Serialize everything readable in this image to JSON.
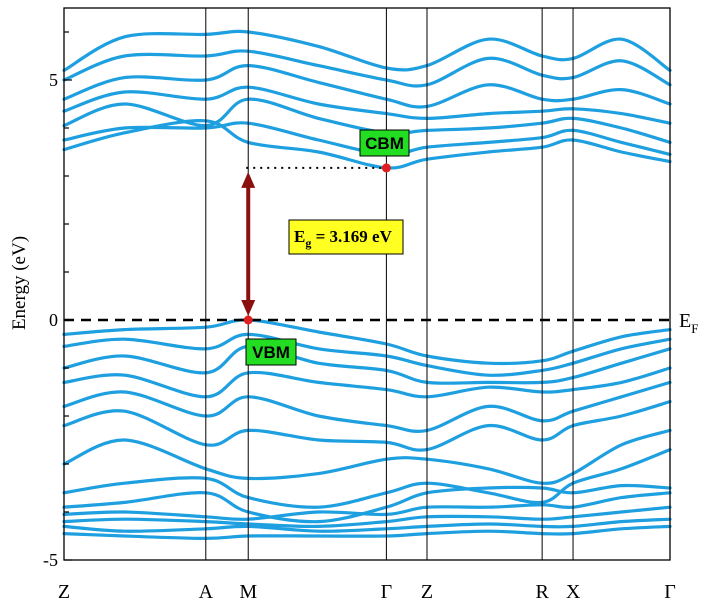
{
  "chart_data": {
    "type": "line",
    "title": "",
    "xlabel": "",
    "ylabel": "Energy (eV)",
    "ylim": [
      -5,
      6.5
    ],
    "yticks": [
      {
        "value": 5,
        "label": "5"
      },
      {
        "value": 0,
        "label": "0"
      },
      {
        "value": -5,
        "label": "-5"
      }
    ],
    "high_symmetry_points": [
      {
        "label": "Z",
        "k": 0.0
      },
      {
        "label": "A",
        "k": 0.234
      },
      {
        "label": "M",
        "k": 0.304
      },
      {
        "label": "Γ",
        "k": 0.532
      },
      {
        "label": "Z",
        "k": 0.599
      },
      {
        "label": "R",
        "k": 0.789
      },
      {
        "label": "X",
        "k": 0.84
      },
      {
        "label": "Γ",
        "k": 1.0
      }
    ],
    "fermi_level": {
      "label_main": "E",
      "label_sub": "F",
      "value": 0
    },
    "band_gap": {
      "label_main": "E",
      "label_sub": "g",
      "label_rest": " = 3.169 eV",
      "value": 3.169,
      "vbm": {
        "label": "VBM",
        "k": 0.304,
        "energy": 0.0
      },
      "cbm": {
        "label": "CBM",
        "k": 0.532,
        "energy": 3.169
      }
    },
    "series": [
      {
        "values": [
          [
            0,
            3.55
          ],
          [
            0.1,
            3.9
          ],
          [
            0.234,
            4.15
          ],
          [
            0.304,
            3.7
          ],
          [
            0.42,
            3.5
          ],
          [
            0.532,
            3.169
          ],
          [
            0.599,
            3.35
          ],
          [
            0.7,
            3.5
          ],
          [
            0.789,
            3.6
          ],
          [
            0.84,
            3.75
          ],
          [
            0.92,
            3.5
          ],
          [
            1,
            3.3
          ]
        ]
      },
      {
        "values": [
          [
            0,
            3.75
          ],
          [
            0.1,
            4.0
          ],
          [
            0.234,
            4.0
          ],
          [
            0.304,
            4.1
          ],
          [
            0.42,
            3.75
          ],
          [
            0.532,
            3.45
          ],
          [
            0.599,
            3.6
          ],
          [
            0.7,
            3.7
          ],
          [
            0.789,
            3.8
          ],
          [
            0.84,
            3.95
          ],
          [
            0.92,
            3.7
          ],
          [
            1,
            3.45
          ]
        ]
      },
      {
        "values": [
          [
            0,
            4.05
          ],
          [
            0.1,
            4.5
          ],
          [
            0.234,
            4.05
          ],
          [
            0.304,
            4.6
          ],
          [
            0.42,
            4.2
          ],
          [
            0.532,
            3.9
          ],
          [
            0.599,
            3.95
          ],
          [
            0.7,
            4.0
          ],
          [
            0.789,
            4.1
          ],
          [
            0.84,
            4.2
          ],
          [
            0.92,
            4.0
          ],
          [
            1,
            3.7
          ]
        ]
      },
      {
        "values": [
          [
            0,
            4.35
          ],
          [
            0.1,
            4.75
          ],
          [
            0.234,
            4.6
          ],
          [
            0.304,
            4.85
          ],
          [
            0.42,
            4.5
          ],
          [
            0.532,
            4.3
          ],
          [
            0.599,
            4.2
          ],
          [
            0.7,
            4.3
          ],
          [
            0.789,
            4.35
          ],
          [
            0.84,
            4.4
          ],
          [
            0.92,
            4.3
          ],
          [
            1,
            4.1
          ]
        ]
      },
      {
        "values": [
          [
            0,
            4.6
          ],
          [
            0.1,
            5.05
          ],
          [
            0.234,
            5.0
          ],
          [
            0.304,
            5.3
          ],
          [
            0.42,
            4.95
          ],
          [
            0.532,
            4.6
          ],
          [
            0.599,
            4.45
          ],
          [
            0.7,
            4.9
          ],
          [
            0.789,
            4.6
          ],
          [
            0.84,
            4.6
          ],
          [
            0.92,
            4.8
          ],
          [
            1,
            4.5
          ]
        ]
      },
      {
        "values": [
          [
            0,
            5.0
          ],
          [
            0.1,
            5.5
          ],
          [
            0.234,
            5.5
          ],
          [
            0.304,
            5.6
          ],
          [
            0.42,
            5.3
          ],
          [
            0.532,
            5.0
          ],
          [
            0.599,
            4.9
          ],
          [
            0.7,
            5.45
          ],
          [
            0.789,
            5.1
          ],
          [
            0.84,
            5.05
          ],
          [
            0.92,
            5.4
          ],
          [
            1,
            4.9
          ]
        ]
      },
      {
        "values": [
          [
            0,
            5.2
          ],
          [
            0.1,
            5.9
          ],
          [
            0.234,
            5.95
          ],
          [
            0.304,
            6.0
          ],
          [
            0.42,
            5.7
          ],
          [
            0.532,
            5.25
          ],
          [
            0.599,
            5.3
          ],
          [
            0.7,
            5.85
          ],
          [
            0.789,
            5.5
          ],
          [
            0.84,
            5.45
          ],
          [
            0.92,
            5.85
          ],
          [
            1,
            5.2
          ]
        ]
      },
      {
        "values": [
          [
            0,
            -0.3
          ],
          [
            0.1,
            -0.2
          ],
          [
            0.234,
            -0.15
          ],
          [
            0.304,
            0.0
          ],
          [
            0.42,
            -0.25
          ],
          [
            0.532,
            -0.5
          ],
          [
            0.599,
            -0.75
          ],
          [
            0.7,
            -0.9
          ],
          [
            0.789,
            -0.85
          ],
          [
            0.84,
            -0.65
          ],
          [
            0.92,
            -0.35
          ],
          [
            1,
            -0.2
          ]
        ]
      },
      {
        "values": [
          [
            0,
            -0.55
          ],
          [
            0.1,
            -0.4
          ],
          [
            0.234,
            -0.6
          ],
          [
            0.304,
            -0.3
          ],
          [
            0.42,
            -0.6
          ],
          [
            0.532,
            -0.75
          ],
          [
            0.599,
            -0.95
          ],
          [
            0.7,
            -1.15
          ],
          [
            0.789,
            -1.05
          ],
          [
            0.84,
            -0.9
          ],
          [
            0.92,
            -0.6
          ],
          [
            1,
            -0.4
          ]
        ]
      },
      {
        "values": [
          [
            0,
            -1.0
          ],
          [
            0.1,
            -0.75
          ],
          [
            0.234,
            -1.1
          ],
          [
            0.304,
            -0.55
          ],
          [
            0.42,
            -0.9
          ],
          [
            0.532,
            -1.05
          ],
          [
            0.599,
            -1.3
          ],
          [
            0.7,
            -1.3
          ],
          [
            0.789,
            -1.3
          ],
          [
            0.84,
            -1.2
          ],
          [
            0.92,
            -0.9
          ],
          [
            1,
            -0.6
          ]
        ]
      },
      {
        "values": [
          [
            0,
            -1.3
          ],
          [
            0.1,
            -1.15
          ],
          [
            0.234,
            -1.6
          ],
          [
            0.304,
            -1.1
          ],
          [
            0.42,
            -1.3
          ],
          [
            0.532,
            -1.45
          ],
          [
            0.599,
            -1.6
          ],
          [
            0.7,
            -1.4
          ],
          [
            0.789,
            -1.5
          ],
          [
            0.84,
            -1.45
          ],
          [
            0.92,
            -1.3
          ],
          [
            1,
            -1.0
          ]
        ]
      },
      {
        "values": [
          [
            0,
            -1.8
          ],
          [
            0.1,
            -1.5
          ],
          [
            0.234,
            -2.0
          ],
          [
            0.304,
            -1.6
          ],
          [
            0.42,
            -2.0
          ],
          [
            0.532,
            -2.2
          ],
          [
            0.599,
            -2.3
          ],
          [
            0.7,
            -1.8
          ],
          [
            0.789,
            -2.1
          ],
          [
            0.84,
            -1.9
          ],
          [
            0.92,
            -1.6
          ],
          [
            1,
            -1.3
          ]
        ]
      },
      {
        "values": [
          [
            0,
            -2.2
          ],
          [
            0.1,
            -1.9
          ],
          [
            0.234,
            -2.6
          ],
          [
            0.304,
            -2.3
          ],
          [
            0.42,
            -2.5
          ],
          [
            0.532,
            -2.55
          ],
          [
            0.599,
            -2.7
          ],
          [
            0.7,
            -2.2
          ],
          [
            0.789,
            -2.5
          ],
          [
            0.84,
            -2.2
          ],
          [
            0.92,
            -2.0
          ],
          [
            1,
            -1.7
          ]
        ]
      },
      {
        "values": [
          [
            0,
            -3.0
          ],
          [
            0.1,
            -2.5
          ],
          [
            0.234,
            -3.1
          ],
          [
            0.304,
            -3.3
          ],
          [
            0.42,
            -3.2
          ],
          [
            0.532,
            -2.9
          ],
          [
            0.599,
            -2.9
          ],
          [
            0.7,
            -3.1
          ],
          [
            0.789,
            -3.4
          ],
          [
            0.84,
            -3.2
          ],
          [
            0.92,
            -2.6
          ],
          [
            1,
            -2.3
          ]
        ]
      },
      {
        "values": [
          [
            0,
            -3.6
          ],
          [
            0.1,
            -3.4
          ],
          [
            0.234,
            -3.3
          ],
          [
            0.304,
            -3.7
          ],
          [
            0.42,
            -3.9
          ],
          [
            0.532,
            -3.6
          ],
          [
            0.599,
            -3.4
          ],
          [
            0.7,
            -3.6
          ],
          [
            0.789,
            -3.8
          ],
          [
            0.84,
            -3.4
          ],
          [
            0.92,
            -3.1
          ],
          [
            1,
            -2.7
          ]
        ]
      },
      {
        "values": [
          [
            0,
            -3.9
          ],
          [
            0.1,
            -3.8
          ],
          [
            0.234,
            -3.6
          ],
          [
            0.304,
            -4.0
          ],
          [
            0.42,
            -4.2
          ],
          [
            0.532,
            -3.9
          ],
          [
            0.599,
            -3.6
          ],
          [
            0.7,
            -3.5
          ],
          [
            0.789,
            -3.5
          ],
          [
            0.84,
            -3.6
          ],
          [
            0.92,
            -3.45
          ],
          [
            1,
            -3.5
          ]
        ]
      },
      {
        "values": [
          [
            0,
            -4.05
          ],
          [
            0.1,
            -4.0
          ],
          [
            0.234,
            -4.1
          ],
          [
            0.304,
            -4.15
          ],
          [
            0.42,
            -4.0
          ],
          [
            0.532,
            -4.05
          ],
          [
            0.599,
            -3.9
          ],
          [
            0.7,
            -3.9
          ],
          [
            0.789,
            -3.85
          ],
          [
            0.84,
            -3.9
          ],
          [
            0.92,
            -3.7
          ],
          [
            1,
            -3.6
          ]
        ]
      },
      {
        "values": [
          [
            0,
            -4.2
          ],
          [
            0.1,
            -4.15
          ],
          [
            0.234,
            -4.2
          ],
          [
            0.304,
            -4.25
          ],
          [
            0.42,
            -4.3
          ],
          [
            0.532,
            -4.2
          ],
          [
            0.599,
            -4.1
          ],
          [
            0.7,
            -4.1
          ],
          [
            0.789,
            -4.15
          ],
          [
            0.84,
            -4.1
          ],
          [
            0.92,
            -4.0
          ],
          [
            1,
            -3.9
          ]
        ]
      },
      {
        "values": [
          [
            0,
            -4.3
          ],
          [
            0.1,
            -4.4
          ],
          [
            0.234,
            -4.35
          ],
          [
            0.304,
            -4.3
          ],
          [
            0.42,
            -4.4
          ],
          [
            0.532,
            -4.35
          ],
          [
            0.599,
            -4.3
          ],
          [
            0.7,
            -4.25
          ],
          [
            0.789,
            -4.3
          ],
          [
            0.84,
            -4.3
          ],
          [
            0.92,
            -4.2
          ],
          [
            1,
            -4.15
          ]
        ]
      },
      {
        "values": [
          [
            0,
            -4.45
          ],
          [
            0.1,
            -4.5
          ],
          [
            0.234,
            -4.55
          ],
          [
            0.304,
            -4.5
          ],
          [
            0.42,
            -4.5
          ],
          [
            0.532,
            -4.5
          ],
          [
            0.599,
            -4.45
          ],
          [
            0.7,
            -4.4
          ],
          [
            0.789,
            -4.45
          ],
          [
            0.84,
            -4.45
          ],
          [
            0.92,
            -4.35
          ],
          [
            1,
            -4.3
          ]
        ]
      }
    ],
    "colors": {
      "band": "#1e9fe0",
      "arrow": "#8b1010",
      "marker": "#e02020",
      "label_green": "#22dd22",
      "label_yellow": "#ffff22",
      "axis": "#000000"
    },
    "grid": false,
    "legend": "none"
  }
}
